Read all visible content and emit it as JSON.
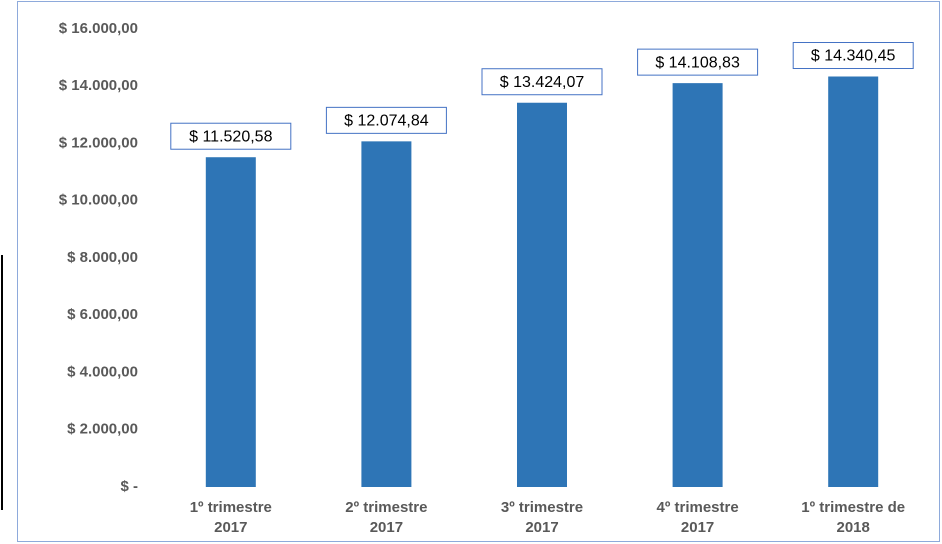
{
  "chart_data": {
    "type": "bar",
    "categories": [
      "1º trimestre 2017",
      "2º trimestre 2017",
      "3º trimestre 2017",
      "4º trimestre 2017",
      "1º trimestre de 2018"
    ],
    "values": [
      11520.58,
      12074.84,
      13424.07,
      14108.83,
      14340.45
    ],
    "value_labels": [
      "$ 11.520,58",
      "$ 12.074,84",
      "$ 13.424,07",
      "$ 14.108,83",
      "$ 14.340,45"
    ],
    "color": "#2e75b6",
    "ylim": [
      0,
      16000
    ],
    "yticks": [
      {
        "value": 0,
        "label": "$ -"
      },
      {
        "value": 2000,
        "label": "$ 2.000,00"
      },
      {
        "value": 4000,
        "label": "$ 4.000,00"
      },
      {
        "value": 6000,
        "label": "$ 6.000,00"
      },
      {
        "value": 8000,
        "label": "$ 8.000,00"
      },
      {
        "value": 10000,
        "label": "$ 10.000,00"
      },
      {
        "value": 12000,
        "label": "$ 12.000,00"
      },
      {
        "value": 14000,
        "label": "$ 14.000,00"
      },
      {
        "value": 16000,
        "label": "$ 16.000,00"
      }
    ],
    "grid": false
  }
}
